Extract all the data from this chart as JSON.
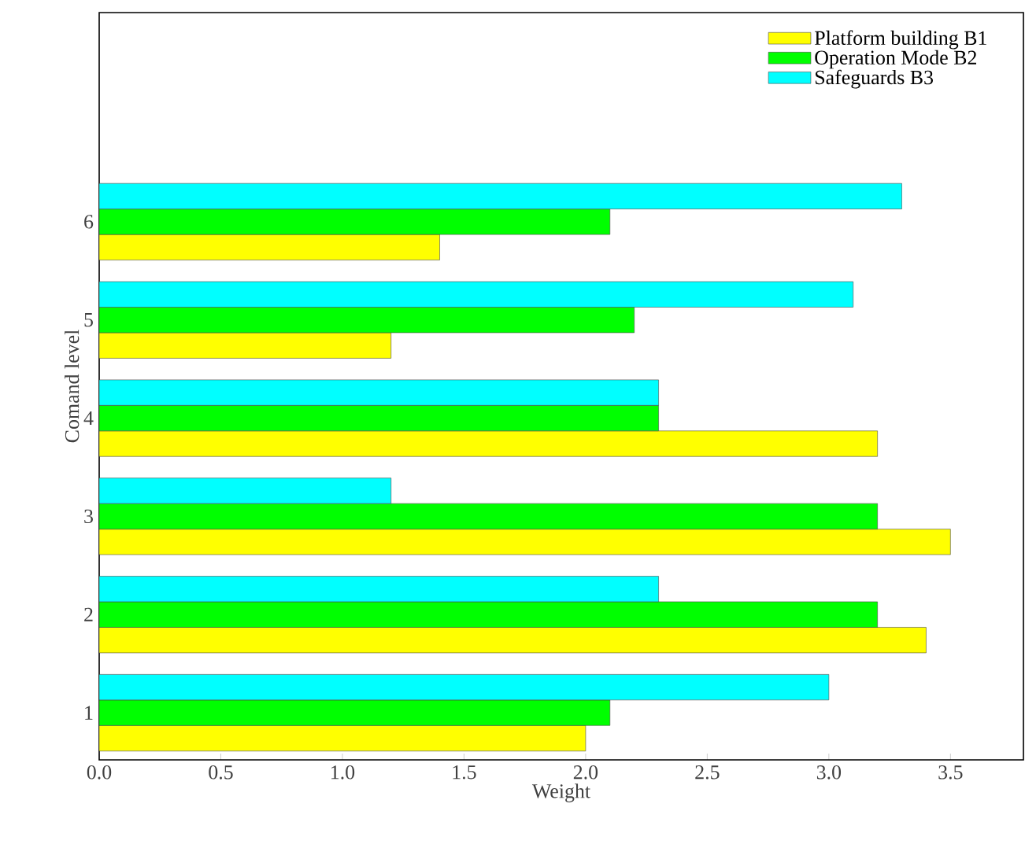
{
  "chart_data": {
    "type": "bar",
    "orientation": "horizontal",
    "xlabel": "Weight",
    "ylabel": "Comand level",
    "categories": [
      "6",
      "5",
      "4",
      "3",
      "2",
      "1"
    ],
    "series": [
      {
        "name": "Platform building B1",
        "color": "#ffff00",
        "values": [
          1.4,
          1.2,
          3.2,
          3.5,
          3.4,
          2.0
        ]
      },
      {
        "name": "Operation Mode B2",
        "color": "#00ff00",
        "values": [
          2.1,
          2.2,
          2.3,
          3.2,
          3.2,
          2.1
        ]
      },
      {
        "name": "Safeguards B3",
        "color": "#00ffff",
        "values": [
          3.3,
          3.1,
          2.3,
          1.2,
          2.3,
          3.0
        ]
      }
    ],
    "xlim": [
      0,
      3.8
    ],
    "xticks": [
      {
        "value": 0,
        "label": "0.0"
      },
      {
        "value": 0.5,
        "label": "0.5"
      },
      {
        "value": 1,
        "label": "1.0"
      },
      {
        "value": 1.5,
        "label": "1.5"
      },
      {
        "value": 2,
        "label": "2.0"
      },
      {
        "value": 2.5,
        "label": "2.5"
      },
      {
        "value": 3,
        "label": "3.0"
      },
      {
        "value": 3.5,
        "label": "3.5"
      }
    ],
    "legend": "top right",
    "grid": false
  }
}
